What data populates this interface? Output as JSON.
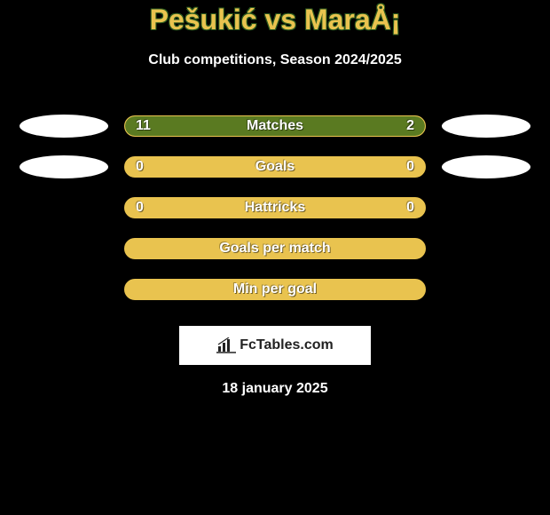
{
  "title": "Pešukić vs MaraÅ¡",
  "subtitle": "Club competitions, Season 2024/2025",
  "colors": {
    "accent": "#e9c34f",
    "bar_fill": "#5a7a21",
    "oval": "#ffffff",
    "background": "#000000"
  },
  "stats": [
    {
      "label": "Matches",
      "left_value": "11",
      "right_value": "2",
      "left_fill_pct": 78,
      "right_fill_pct": 22,
      "show_left_oval": true,
      "show_right_oval": true
    },
    {
      "label": "Goals",
      "left_value": "0",
      "right_value": "0",
      "left_fill_pct": 0,
      "right_fill_pct": 0,
      "show_left_oval": true,
      "show_right_oval": true
    },
    {
      "label": "Hattricks",
      "left_value": "0",
      "right_value": "0",
      "left_fill_pct": 0,
      "right_fill_pct": 0,
      "show_left_oval": false,
      "show_right_oval": false
    },
    {
      "label": "Goals per match",
      "left_value": "",
      "right_value": "",
      "left_fill_pct": 0,
      "right_fill_pct": 0,
      "show_left_oval": false,
      "show_right_oval": false
    },
    {
      "label": "Min per goal",
      "left_value": "",
      "right_value": "",
      "left_fill_pct": 0,
      "right_fill_pct": 0,
      "show_left_oval": false,
      "show_right_oval": false
    }
  ],
  "attribution": "FcTables.com",
  "date": "18 january 2025"
}
